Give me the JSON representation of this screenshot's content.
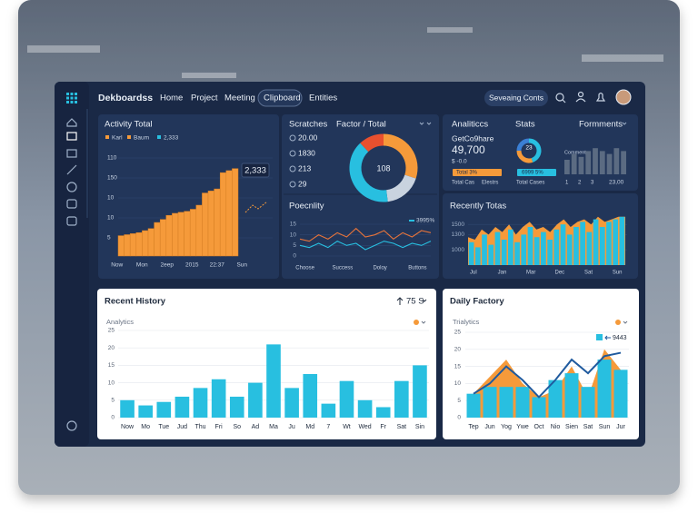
{
  "nav": {
    "brand": "Dekboardss",
    "links": [
      "Home",
      "Project",
      "Meeting",
      "Clipboard",
      "Entities"
    ],
    "button": "Seveaing Conts"
  },
  "activity": {
    "title": "Activity Total",
    "legend": [
      {
        "name": "Karl",
        "color": "#f59a3a"
      },
      {
        "name": "Baum",
        "color": "#f59a3a"
      },
      {
        "name": "2,333",
        "color": "#28bfe0"
      }
    ],
    "callout": "2,333",
    "ylabels": [
      "110",
      "150",
      "10",
      "10",
      "5"
    ],
    "categories": [
      "Now",
      "Mon",
      "2eep",
      "2015",
      "22:37",
      "Sun"
    ],
    "chart_data": {
      "type": "bar",
      "color": "#f59a3a",
      "ylim": [
        0,
        100
      ],
      "values": [
        20,
        21,
        22,
        23,
        25,
        27,
        33,
        36,
        40,
        42,
        43,
        44,
        46,
        50,
        62,
        64,
        66,
        82,
        84,
        86
      ]
    }
  },
  "scratches": {
    "title": "Scratches",
    "items": [
      "20.00",
      "1830",
      "213",
      "29"
    ]
  },
  "factor": {
    "title": "Factor / Total",
    "center": "108",
    "chart_data": {
      "type": "pie",
      "values": [
        30,
        18,
        40,
        12
      ],
      "colors": [
        "#f59a3a",
        "#c9d3df",
        "#28bfe0",
        "#e8502f"
      ]
    }
  },
  "poecnlity": {
    "title": "Poecnlity",
    "legend": "3995%",
    "categories": [
      "Choose",
      "Success",
      "Doloy",
      "Buttons"
    ],
    "chart_data": {
      "type": "line",
      "ylim": [
        0,
        15
      ],
      "yticks": [
        0,
        5,
        10,
        15
      ],
      "series": [
        {
          "color": "#e8743a",
          "values": [
            8,
            7,
            10,
            8,
            11,
            9,
            13,
            9,
            10,
            12,
            8,
            11,
            9,
            12,
            11
          ]
        },
        {
          "color": "#28bfe0",
          "values": [
            5,
            4,
            6,
            4,
            7,
            5,
            6,
            3,
            5,
            7,
            6,
            4,
            6,
            5,
            7
          ]
        }
      ]
    }
  },
  "analytics": {
    "title": "Analiticcs",
    "subtitle": "GetCo9hare",
    "value": "49,700",
    "delta": "$ -0.0",
    "tag": "Total 3%",
    "labels": [
      "Total Cas",
      "Elestrs"
    ]
  },
  "stats": {
    "title": "Stats",
    "center": "23",
    "tag": "6999 5%",
    "label": "Total Cases",
    "chart_data": {
      "type": "pie",
      "values": [
        45,
        30,
        25
      ],
      "colors": [
        "#28bfe0",
        "#f59a3a",
        "#3b7fd4"
      ]
    }
  },
  "formments": {
    "title": "Formments",
    "label": "Comments",
    "categories": [
      "1",
      "2",
      "3"
    ],
    "total": "23,00",
    "chart_data": {
      "type": "bar",
      "color": "#5b6b82",
      "ylim": [
        0,
        10
      ],
      "values": [
        5,
        7,
        6,
        8,
        9,
        8,
        7,
        9,
        8
      ]
    }
  },
  "recently": {
    "title": "Recently Totas",
    "categories": [
      "Jul",
      "Jan",
      "Mar",
      "Dec",
      "Sat",
      "Sun"
    ],
    "chart_data": {
      "type": "bar",
      "ylim": [
        700,
        1700
      ],
      "yticks": [
        1000,
        1300,
        1500
      ],
      "series": [
        {
          "color": "#f59a3a",
          "values": [
            1250,
            1200,
            1400,
            1300,
            1450,
            1350,
            1500,
            1300,
            1450,
            1550,
            1400,
            1450,
            1350,
            1500,
            1600,
            1450,
            1550,
            1600,
            1500,
            1650,
            1550,
            1600,
            1650,
            1650
          ]
        },
        {
          "color": "#28bfe0",
          "values": [
            1150,
            1050,
            1300,
            1100,
            1350,
            1200,
            1400,
            1150,
            1300,
            1450,
            1250,
            1350,
            1200,
            1400,
            1500,
            1300,
            1450,
            1550,
            1350,
            1600,
            1450,
            1550,
            1600,
            1650
          ]
        }
      ]
    }
  },
  "history": {
    "title": "Recent History",
    "badge": "75 S",
    "subtitle": "Analytics",
    "chart_data": {
      "type": "bar",
      "color": "#28bfe0",
      "ylim": [
        0,
        25
      ],
      "yticks": [
        0,
        5,
        10,
        15,
        20,
        25
      ],
      "categories": [
        "Now",
        "Mo",
        "Tue",
        "Jud",
        "Thu",
        "Fri",
        "So",
        "Ad",
        "Ma",
        "Ju",
        "Md",
        "7",
        "Wt",
        "Wed",
        "Fr",
        "Sat",
        "Sin"
      ],
      "values": [
        5,
        3.5,
        4.5,
        6,
        8.5,
        11,
        6,
        10,
        21,
        8.5,
        12.5,
        4,
        10.5,
        5,
        3,
        10.5,
        15
      ]
    }
  },
  "daily": {
    "title": "Daily Factory",
    "subtitle": "Trialytics",
    "legend": "9443",
    "chart_data": {
      "type": "bar",
      "ylim": [
        0,
        25
      ],
      "yticks": [
        0,
        5,
        10,
        15,
        20,
        25
      ],
      "categories": [
        "Tep",
        "Jun",
        "Yog",
        "Ywe",
        "Oct",
        "Nio",
        "Sien",
        "Sat",
        "Sun",
        "Jur"
      ],
      "series": [
        {
          "color": "#f59a3a",
          "values": [
            7,
            12,
            17,
            10,
            6,
            8,
            15,
            6,
            20,
            14
          ]
        },
        {
          "color": "#28bfe0",
          "values": [
            7,
            9,
            9,
            9,
            6,
            11,
            13,
            9,
            17,
            14
          ]
        },
        {
          "color": "#1f5a9e",
          "values": [
            7,
            10,
            15,
            11,
            6,
            11,
            17,
            13,
            18,
            19
          ]
        }
      ]
    }
  }
}
